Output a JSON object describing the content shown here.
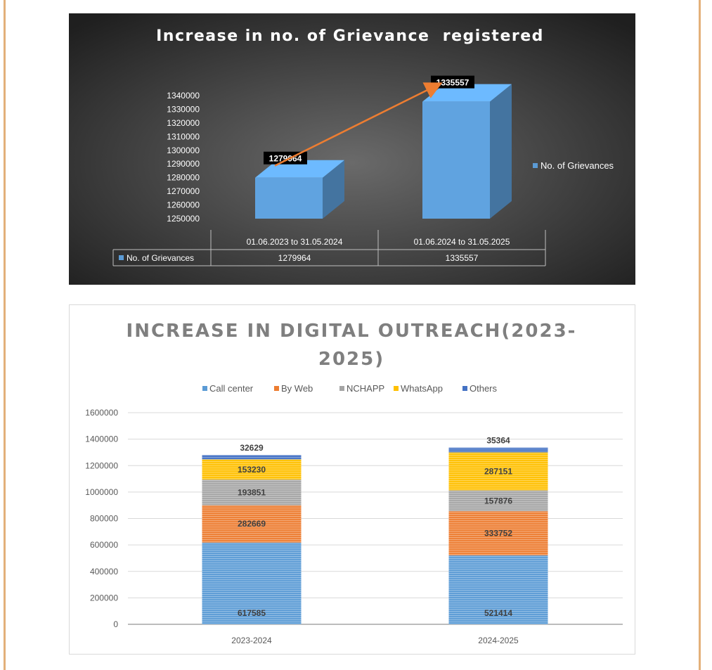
{
  "chart_data": [
    {
      "type": "bar",
      "title": "Increase in no. of Grievance  registered",
      "categories": [
        "01.06.2023 to 31.05.2024",
        "01.06.2024 to 31.05.2025"
      ],
      "series": [
        {
          "name": "No. of Grievances",
          "values": [
            1279964,
            1335557
          ],
          "color": "#5b9bd5"
        }
      ],
      "data_labels": [
        "1279964",
        "1335557"
      ],
      "ylim": [
        1250000,
        1340000
      ],
      "yticks": [
        "1340000",
        "1330000",
        "1320000",
        "1310000",
        "1300000",
        "1290000",
        "1280000",
        "1270000",
        "1260000",
        "1250000"
      ],
      "data_table": true,
      "legend_position": "right",
      "background": "dark",
      "trend_arrow_color": "#ed7d31"
    },
    {
      "type": "bar",
      "stacked": true,
      "title_line1": "INCREASE IN DIGITAL OUTREACH(2023-",
      "title_line2": "2025)",
      "categories": [
        "2023-2024",
        "2024-2025"
      ],
      "series": [
        {
          "name": "Call center",
          "values": [
            617585,
            521414
          ],
          "color": "#5b9bd5"
        },
        {
          "name": "By Web",
          "values": [
            282669,
            333752
          ],
          "color": "#ed7d31"
        },
        {
          "name": "NCHAPP",
          "values": [
            193851,
            157876
          ],
          "color": "#a5a5a5"
        },
        {
          "name": "WhatsApp",
          "values": [
            153230,
            287151
          ],
          "color": "#ffc000"
        },
        {
          "name": "Others",
          "values": [
            32629,
            35364
          ],
          "color": "#4472c4"
        }
      ],
      "ylim": [
        0,
        1600000
      ],
      "yticks": [
        "1600000",
        "1400000",
        "1200000",
        "1000000",
        "800000",
        "600000",
        "400000",
        "200000",
        "0"
      ],
      "grid": true,
      "legend_position": "top"
    }
  ]
}
